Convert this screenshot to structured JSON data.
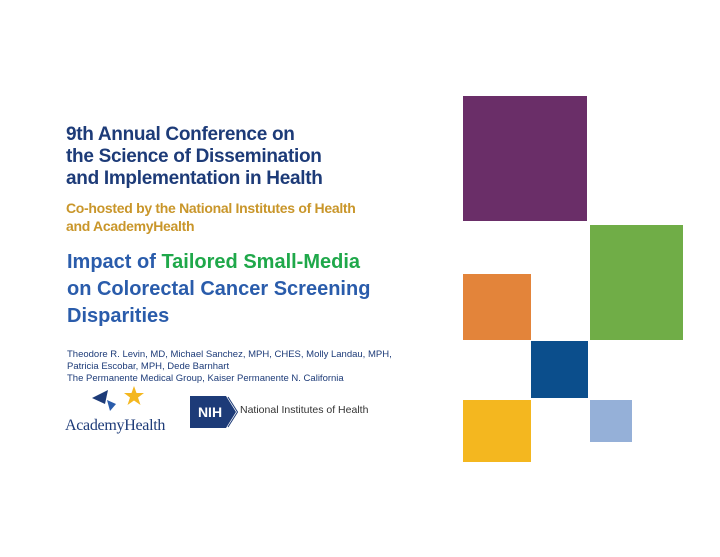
{
  "conference": {
    "title_lines": [
      "9th Annual Conference on",
      "the Science of Dissemination",
      "and Implementation in Health"
    ],
    "cohost_lines": [
      "Co-hosted by the National Institutes of Health",
      "and AcademyHealth"
    ]
  },
  "talk": {
    "title_part1": "Impact of ",
    "title_highlight": "Tailored Small-Media",
    "title_line2": "on Colorectal Cancer Screening",
    "title_line3": "Disparities"
  },
  "authors": {
    "lines": [
      "Theodore R. Levin, MD, Michael Sanchez, MPH, CHES, Molly Landau, MPH,",
      "Patricia Escobar, MPH, Dede Barnhart",
      "The Permanente Medical Group, Kaiser Permanente N. California"
    ]
  },
  "logos": {
    "academyhealth_text": "AcademyHealth",
    "nih_mark": "NIH",
    "nih_name": "National Institutes of Health"
  },
  "colors": {
    "navy": "#1d3b78",
    "gold": "#c9962a",
    "title_blue": "#2a5cab",
    "highlight_green": "#1fa84a",
    "purple": "#6a2e68",
    "green": "#70ad47",
    "orange": "#e3843a",
    "blue": "#0b4e8c",
    "yellow": "#f4b71f",
    "light_blue": "#95b0d8"
  }
}
